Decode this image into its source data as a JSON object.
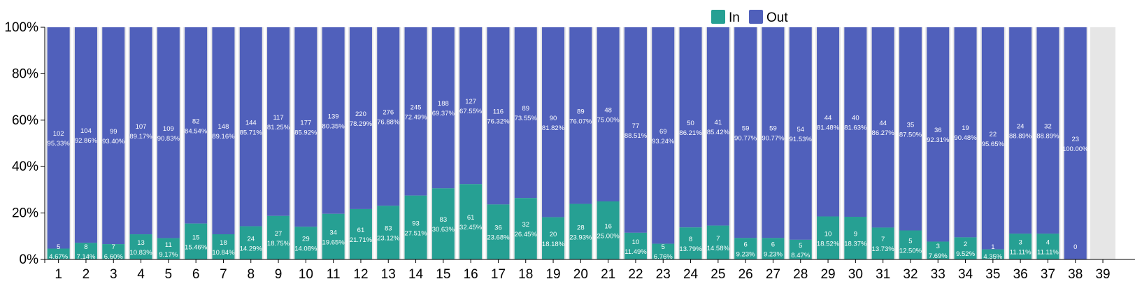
{
  "chart_data": {
    "type": "bar",
    "stacked": "percent",
    "title": "",
    "xlabel": "",
    "ylabel": "",
    "ylim": [
      0,
      100
    ],
    "yticks": [
      "0%",
      "20%",
      "40%",
      "60%",
      "80%",
      "100%"
    ],
    "legend": {
      "placement": "top-right",
      "entries": [
        "In",
        "Out"
      ]
    },
    "colors": {
      "In": "#26a093",
      "Out": "#5060bb",
      "track": "#e6e6e6"
    },
    "categories": [
      "1",
      "2",
      "3",
      "4",
      "5",
      "6",
      "7",
      "8",
      "9",
      "10",
      "11",
      "12",
      "13",
      "14",
      "15",
      "16",
      "17",
      "18",
      "19",
      "20",
      "21",
      "22",
      "23",
      "24",
      "25",
      "26",
      "27",
      "28",
      "29",
      "30",
      "31",
      "32",
      "33",
      "34",
      "35",
      "36",
      "37",
      "38",
      "39"
    ],
    "series": [
      {
        "name": "In",
        "values": [
          5,
          8,
          7,
          13,
          11,
          15,
          18,
          24,
          27,
          29,
          34,
          61,
          83,
          93,
          83,
          61,
          36,
          32,
          20,
          28,
          16,
          10,
          5,
          8,
          7,
          6,
          6,
          5,
          10,
          9,
          7,
          5,
          3,
          2,
          1,
          3,
          4,
          0,
          null
        ],
        "labels": [
          "4.67%",
          "7.14%",
          "6.60%",
          "10.83%",
          "9.17%",
          "15.46%",
          "10.84%",
          "14.29%",
          "18.75%",
          "14.08%",
          "19.65%",
          "21.71%",
          "23.12%",
          "27.51%",
          "30.63%",
          "32.45%",
          "23.68%",
          "26.45%",
          "18.18%",
          "23.93%",
          "25.00%",
          "11.49%",
          "6.76%",
          "13.79%",
          "14.58%",
          "9.23%",
          "9.23%",
          "8.47%",
          "18.52%",
          "18.37%",
          "13.73%",
          "12.50%",
          "7.69%",
          "9.52%",
          "4.35%",
          "11.11%",
          "11.11%",
          "",
          null
        ]
      },
      {
        "name": "Out",
        "values": [
          102,
          104,
          99,
          107,
          109,
          82,
          148,
          144,
          117,
          177,
          139,
          220,
          276,
          245,
          188,
          127,
          116,
          89,
          90,
          89,
          48,
          77,
          69,
          50,
          41,
          59,
          59,
          54,
          44,
          40,
          44,
          35,
          36,
          19,
          22,
          24,
          32,
          23,
          null
        ],
        "labels": [
          "95.33%",
          "92.86%",
          "93.40%",
          "89.17%",
          "90.83%",
          "84.54%",
          "89.16%",
          "85.71%",
          "81.25%",
          "85.92%",
          "80.35%",
          "78.29%",
          "76.88%",
          "72.49%",
          "69.37%",
          "67.55%",
          "76.32%",
          "73.55%",
          "81.82%",
          "76.07%",
          "75.00%",
          "88.51%",
          "93.24%",
          "86.21%",
          "85.42%",
          "90.77%",
          "90.77%",
          "91.53%",
          "81.48%",
          "81.63%",
          "86.27%",
          "87.50%",
          "92.31%",
          "90.48%",
          "95.65%",
          "88.89%",
          "88.89%",
          "100.00%",
          null
        ]
      }
    ]
  }
}
